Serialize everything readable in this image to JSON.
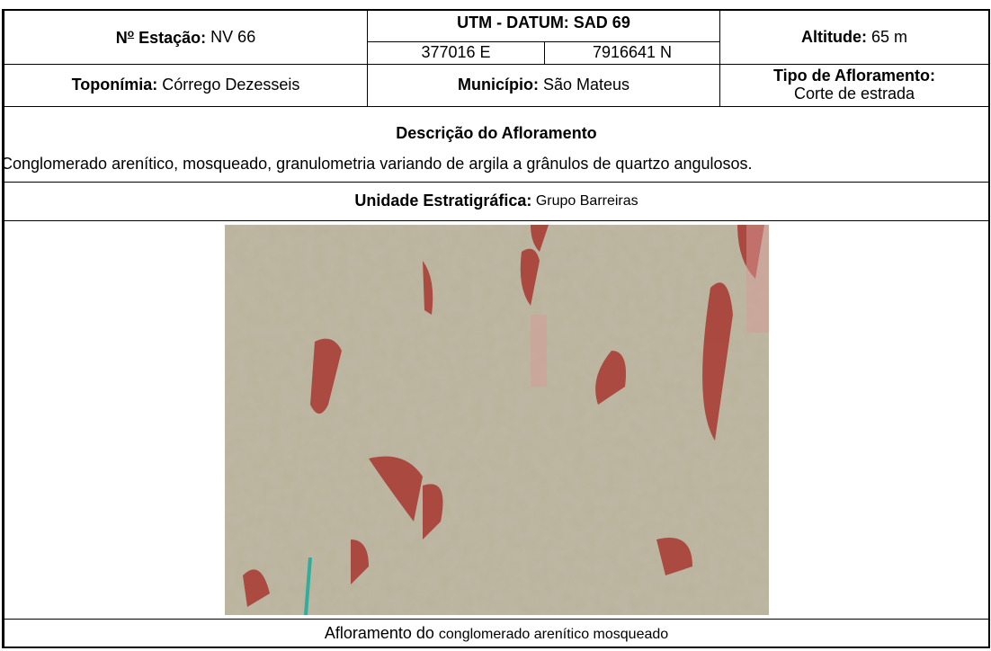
{
  "station": {
    "label_prefix": "N",
    "label_sup": "o",
    "label": " Estação:",
    "value": " NV 66"
  },
  "utm": {
    "title": "UTM - DATUM: SAD 69",
    "easting": "377016 E",
    "northing": "7916641 N"
  },
  "altitude": {
    "label": "Altitude:",
    "value": " 65 m"
  },
  "toponimia": {
    "label": "Toponímia:",
    "value": " Córrego Dezesseis"
  },
  "municipio": {
    "label": "Município:",
    "value": " São Mateus"
  },
  "afloramento_tipo": {
    "label": "Tipo de Afloramento:",
    "value": "Corte de estrada"
  },
  "descricao": {
    "title": "Descrição do Afloramento",
    "text": "Conglomerado arenítico, mosqueado, granulometria variando de argila a grânulos de quartzo angulosos."
  },
  "unidade": {
    "label": "Unidade Estratigráfica:",
    "value": " Grupo Barreiras"
  },
  "caption": {
    "part1": "Afloramento do ",
    "part2": "conglomerado arenítico mosqueado"
  }
}
